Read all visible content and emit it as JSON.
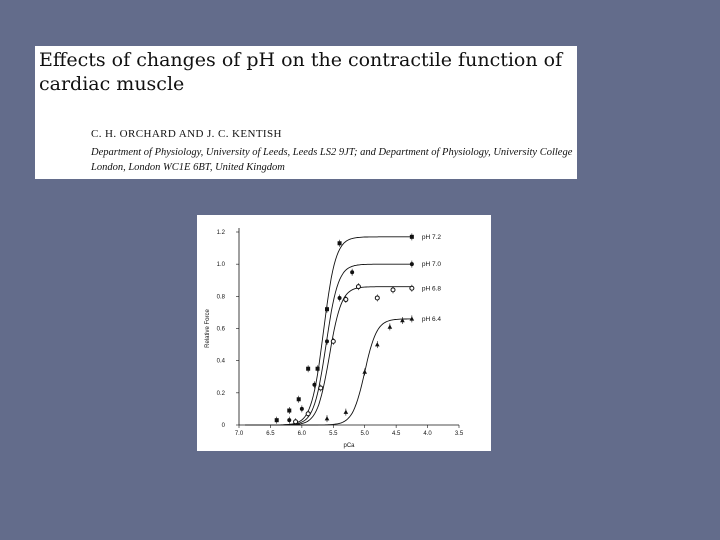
{
  "paper": {
    "title": "Effects of changes of pH on the contractile function of cardiac muscle",
    "authors": "C. H. ORCHARD AND J. C. KENTISH",
    "affiliation": "Department of Physiology, University of Leeds, Leeds LS2 9JT; and Department of Physiology, University College London, London WC1E 6BT, United Kingdom"
  },
  "chart_data": {
    "type": "line",
    "title": "",
    "xlabel": "pCa",
    "ylabel": "Relative Force",
    "x_reversed": true,
    "xlim": [
      7.0,
      3.5
    ],
    "ylim": [
      0,
      1.2
    ],
    "x_ticks": [
      "7.0",
      "6.5",
      "6.0",
      "5.5",
      "5.0",
      "4.5",
      "4.0",
      "3.5"
    ],
    "y_ticks": [
      "0",
      "0.2",
      "0.4",
      "0.6",
      "0.8",
      "1.0",
      "1.2"
    ],
    "legend_placement": "right, at end of each curve",
    "series": [
      {
        "name": "pH 7.2",
        "marker": "square",
        "x": [
          6.4,
          6.2,
          6.05,
          5.9,
          5.75,
          5.6,
          5.4,
          4.25
        ],
        "y": [
          0.03,
          0.09,
          0.16,
          0.35,
          0.35,
          0.72,
          1.13,
          1.17
        ]
      },
      {
        "name": "pH 7.0",
        "marker": "circle",
        "x": [
          6.2,
          6.0,
          5.8,
          5.6,
          5.4,
          5.2,
          4.25
        ],
        "y": [
          0.03,
          0.1,
          0.25,
          0.52,
          0.79,
          0.95,
          1.0
        ]
      },
      {
        "name": "pH 6.8",
        "marker": "circle-open",
        "x": [
          6.1,
          5.9,
          5.7,
          5.5,
          5.3,
          5.1,
          4.8,
          4.55,
          4.25
        ],
        "y": [
          0.02,
          0.07,
          0.23,
          0.52,
          0.78,
          0.86,
          0.79,
          0.84,
          0.85
        ]
      },
      {
        "name": "pH 6.4",
        "marker": "triangle",
        "x": [
          5.6,
          5.3,
          5.0,
          4.8,
          4.6,
          4.4,
          4.25
        ],
        "y": [
          0.04,
          0.08,
          0.33,
          0.5,
          0.61,
          0.65,
          0.66
        ]
      }
    ]
  }
}
